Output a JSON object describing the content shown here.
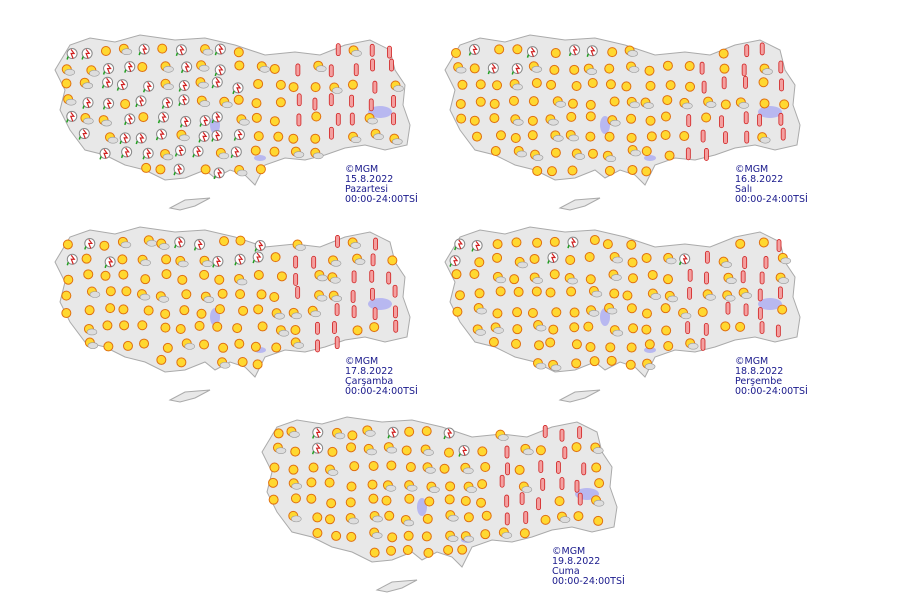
{
  "maps": [
    {
      "copyright": "©MGM",
      "date": "15.8.2022",
      "day": "Pazartesi",
      "period": "00:00-24:00TSİ"
    },
    {
      "copyright": "©MGM",
      "date": "16.8.2022",
      "day": "Salı",
      "period": "00:00-24:00TSİ"
    },
    {
      "copyright": "©MGM",
      "date": "17.8.2022",
      "day": "Çarşamba",
      "period": "00:00-24:00TSİ"
    },
    {
      "copyright": "©MGM",
      "date": "18.8.2022",
      "day": "Perşembe",
      "period": "00:00-24:00TSİ"
    },
    {
      "copyright": "©MGM",
      "date": "19.8.2022",
      "day": "Cuma",
      "period": "00:00-24:00TSİ"
    }
  ]
}
